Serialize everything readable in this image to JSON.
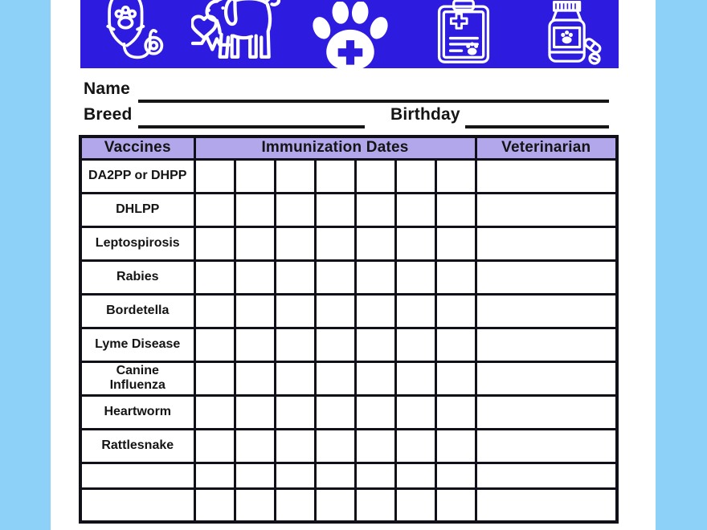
{
  "document": {
    "type": "pet-vaccination-record-form",
    "colors": {
      "canvas_background": "#8ed1f8",
      "paper": "#ffffff",
      "banner_blue": "#2d1ce0",
      "header_lavender": "#b2a7ea",
      "table_border": "#101018",
      "text": "#141414",
      "icon_color": "#ffffff"
    }
  },
  "banner": {
    "icons": [
      {
        "name": "iv-stethoscope-icon"
      },
      {
        "name": "dog-heartbeat-icon"
      },
      {
        "name": "paw-cross-icon"
      },
      {
        "name": "medical-clipboard-icon"
      },
      {
        "name": "medicine-bottle-icon"
      }
    ]
  },
  "fields": {
    "name_label": "Name",
    "breed_label": "Breed",
    "birthday_label": "Birthday"
  },
  "table": {
    "header": {
      "vaccines": "Vaccines",
      "immunization_dates": "Immunization Dates",
      "veterinarian": "Veterinarian"
    },
    "date_columns": 7,
    "rows": [
      {
        "label": "DA2PP or DHPP"
      },
      {
        "label": "DHLPP"
      },
      {
        "label": "Leptospirosis"
      },
      {
        "label": "Rabies"
      },
      {
        "label": "Bordetella"
      },
      {
        "label": "Lyme Disease"
      },
      {
        "label": "Canine Influenza"
      },
      {
        "label": "Heartworm"
      },
      {
        "label": "Rattlesnake"
      },
      {
        "label": ""
      },
      {
        "label": ""
      }
    ]
  }
}
